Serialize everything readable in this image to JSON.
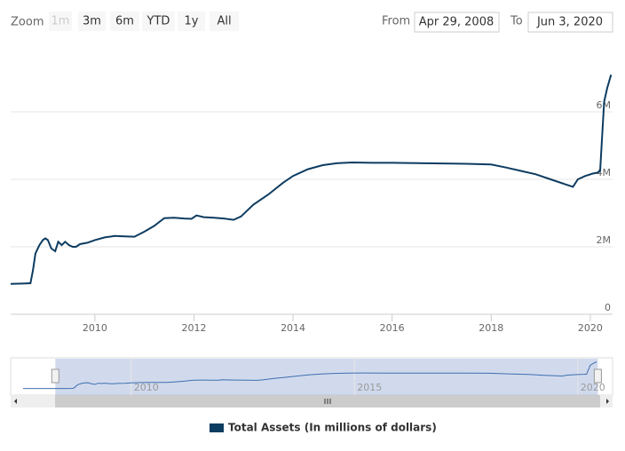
{
  "range_selector": {
    "zoom_label": "Zoom",
    "buttons": [
      "1m",
      "3m",
      "6m",
      "YTD",
      "1y",
      "All"
    ],
    "disabled_button": "1m",
    "from_label": "From",
    "from_value": "Apr 29, 2008",
    "to_label": "To",
    "to_value": "Jun 3, 2020"
  },
  "chart_data": {
    "type": "line",
    "series": [
      {
        "name": "Total Assets (In millions of dollars)",
        "color": "#0d3c61",
        "x": [
          2008.3,
          2008.55,
          2008.7,
          2008.75,
          2008.8,
          2008.88,
          2008.95,
          2009.0,
          2009.05,
          2009.12,
          2009.2,
          2009.26,
          2009.33,
          2009.4,
          2009.48,
          2009.55,
          2009.62,
          2009.7,
          2009.85,
          2010.0,
          2010.2,
          2010.4,
          2010.6,
          2010.8,
          2011.0,
          2011.2,
          2011.4,
          2011.6,
          2011.8,
          2011.95,
          2012.05,
          2012.2,
          2012.4,
          2012.6,
          2012.8,
          2012.95,
          2013.2,
          2013.5,
          2013.8,
          2014.0,
          2014.3,
          2014.6,
          2014.9,
          2015.2,
          2015.6,
          2016.0,
          2016.5,
          2017.0,
          2017.5,
          2018.0,
          2018.3,
          2018.6,
          2018.9,
          2019.2,
          2019.5,
          2019.65,
          2019.75,
          2019.9,
          2020.05,
          2020.15,
          2020.2,
          2020.24,
          2020.28,
          2020.34,
          2020.42
        ],
        "values": [
          900000,
          910000,
          920000,
          1300000,
          1800000,
          2050000,
          2200000,
          2250000,
          2200000,
          1950000,
          1870000,
          2150000,
          2050000,
          2150000,
          2050000,
          2000000,
          2000000,
          2080000,
          2120000,
          2200000,
          2280000,
          2320000,
          2310000,
          2300000,
          2450000,
          2620000,
          2850000,
          2860000,
          2840000,
          2830000,
          2930000,
          2880000,
          2860000,
          2840000,
          2800000,
          2900000,
          3250000,
          3550000,
          3900000,
          4100000,
          4300000,
          4420000,
          4480000,
          4500000,
          4490000,
          4490000,
          4480000,
          4470000,
          4460000,
          4440000,
          4350000,
          4250000,
          4150000,
          4000000,
          3850000,
          3780000,
          4000000,
          4100000,
          4170000,
          4200000,
          4250000,
          5300000,
          6300000,
          6700000,
          7100000
        ]
      }
    ],
    "xlim": [
      2008.3,
      2020.45
    ],
    "xticks": [
      2010,
      2012,
      2014,
      2016,
      2018,
      2020
    ],
    "ylim": [
      0,
      8000000
    ],
    "yticks": [
      0,
      {
        "value": 2000000,
        "label": "2M"
      },
      {
        "value": 4000000,
        "label": "4M"
      },
      {
        "value": 6000000,
        "label": "6M"
      }
    ],
    "grid": true,
    "legend": "bottom",
    "navigator_xlim": [
      2007.3,
      2020.78
    ],
    "navigator_xticks": [
      2010,
      2015,
      2020
    ]
  }
}
